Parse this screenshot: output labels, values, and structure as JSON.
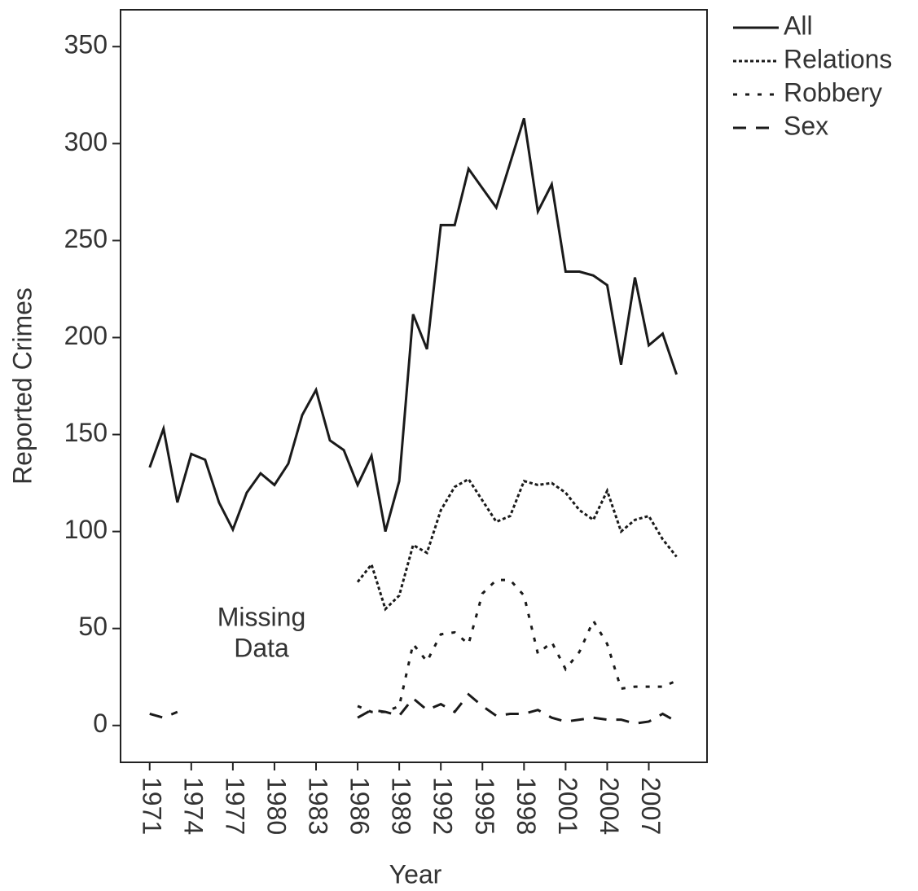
{
  "chart_data": {
    "type": "line",
    "x_label": "Year",
    "y_label": "Reported Crimes",
    "annotation": [
      "Missing",
      "Data"
    ],
    "x": [
      1971,
      1972,
      1973,
      1974,
      1975,
      1976,
      1977,
      1978,
      1979,
      1980,
      1981,
      1982,
      1983,
      1984,
      1985,
      1986,
      1987,
      1988,
      1989,
      1990,
      1991,
      1992,
      1993,
      1994,
      1995,
      1996,
      1997,
      1998,
      1999,
      2000,
      2001,
      2002,
      2003,
      2004,
      2005,
      2006,
      2007,
      2008,
      2009
    ],
    "series": [
      {
        "name": "All",
        "color": "#1a1a1a",
        "line_style": "solid",
        "values": [
          133,
          153,
          115,
          140,
          137,
          115,
          101,
          120,
          130,
          124,
          135,
          160,
          173,
          147,
          142,
          124,
          139,
          100,
          126,
          212,
          194,
          258,
          258,
          287,
          277,
          267,
          290,
          313,
          265,
          279,
          234,
          234,
          232,
          227,
          186,
          231,
          196,
          202,
          181
        ]
      },
      {
        "name": "Relations",
        "color": "#1a1a1a",
        "line_style": "dotted",
        "values": [
          null,
          null,
          null,
          null,
          null,
          null,
          null,
          null,
          null,
          null,
          null,
          null,
          null,
          null,
          null,
          74,
          83,
          60,
          67,
          93,
          89,
          111,
          123,
          127,
          116,
          105,
          108,
          126,
          124,
          125,
          120,
          111,
          106,
          121,
          100,
          106,
          108,
          96,
          87
        ]
      },
      {
        "name": "Robbery",
        "color": "#1a1a1a",
        "line_style": "spaced-dotted",
        "values": [
          null,
          null,
          null,
          null,
          null,
          null,
          null,
          null,
          null,
          null,
          null,
          null,
          null,
          null,
          null,
          10,
          7,
          7,
          10,
          42,
          33,
          47,
          48,
          42,
          68,
          75,
          75,
          67,
          37,
          43,
          29,
          38,
          54,
          42,
          19,
          20,
          20,
          20,
          23
        ]
      },
      {
        "name": "Sex",
        "color": "#1a1a1a",
        "line_style": "dashed",
        "values": [
          6,
          4,
          7,
          null,
          null,
          null,
          null,
          null,
          null,
          null,
          null,
          null,
          null,
          null,
          null,
          4,
          8,
          7,
          5,
          14,
          8,
          11,
          7,
          16,
          10,
          5,
          6,
          6,
          8,
          4,
          2,
          3,
          4,
          3,
          3,
          1,
          2,
          6,
          2
        ]
      }
    ],
    "xlim": [
      1968.9,
      2011.2
    ],
    "ylim": [
      -19,
      369
    ],
    "xticks": [
      1971,
      1974,
      1977,
      1980,
      1983,
      1986,
      1989,
      1992,
      1995,
      1998,
      2001,
      2004,
      2007
    ],
    "yticks": [
      0,
      50,
      100,
      150,
      200,
      250,
      300,
      350
    ],
    "legend": "outside-top-right"
  }
}
